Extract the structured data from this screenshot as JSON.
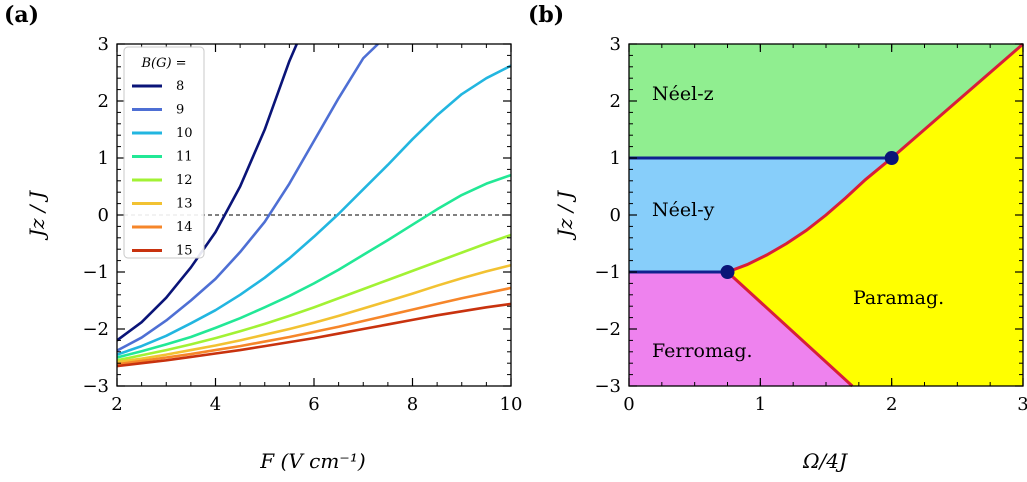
{
  "panels": {
    "a_label": "(a)",
    "b_label": "(b)"
  },
  "chart_data": [
    {
      "type": "line",
      "xlabel": "F  (V cm⁻¹)",
      "ylabel": "Jz / J",
      "xlim": [
        2,
        10
      ],
      "ylim": [
        -3,
        3
      ],
      "xticks": [
        "2",
        "4",
        "6",
        "8",
        "10"
      ],
      "yticks": [
        "−3",
        "−2",
        "−1",
        "0",
        "1",
        "2",
        "3"
      ],
      "legend_title": "B(G) =",
      "legend_position": "top-left",
      "reference_line": {
        "y": 0,
        "style": "dashed"
      },
      "series": [
        {
          "name": "8",
          "color": "#0a1478",
          "x": [
            2,
            2.5,
            3,
            3.5,
            4,
            4.5,
            5,
            5.5,
            5.65
          ],
          "y": [
            -2.2,
            -1.88,
            -1.45,
            -0.92,
            -0.3,
            0.5,
            1.5,
            2.7,
            3.0
          ]
        },
        {
          "name": "9",
          "color": "#4e6fd4",
          "x": [
            2,
            2.5,
            3,
            3.5,
            4,
            4.5,
            5,
            5.5,
            6,
            6.5,
            7,
            7.3
          ],
          "y": [
            -2.38,
            -2.15,
            -1.85,
            -1.5,
            -1.12,
            -0.65,
            -0.12,
            0.55,
            1.3,
            2.05,
            2.75,
            3.0
          ]
        },
        {
          "name": "10",
          "color": "#22b6e0",
          "x": [
            2,
            2.5,
            3,
            3.5,
            4,
            4.5,
            5,
            5.5,
            6,
            6.5,
            7,
            7.5,
            8,
            8.5,
            9,
            9.5,
            10
          ],
          "y": [
            -2.45,
            -2.3,
            -2.12,
            -1.9,
            -1.67,
            -1.4,
            -1.1,
            -0.76,
            -0.38,
            0.02,
            0.45,
            0.88,
            1.33,
            1.75,
            2.12,
            2.4,
            2.62
          ]
        },
        {
          "name": "11",
          "color": "#22e896",
          "x": [
            2,
            2.5,
            3,
            3.5,
            4,
            4.5,
            5,
            5.5,
            6,
            6.5,
            7,
            7.5,
            8,
            8.5,
            9,
            9.5,
            10
          ],
          "y": [
            -2.5,
            -2.39,
            -2.27,
            -2.14,
            -1.98,
            -1.81,
            -1.62,
            -1.42,
            -1.2,
            -0.96,
            -0.7,
            -0.44,
            -0.17,
            0.1,
            0.35,
            0.55,
            0.7
          ]
        },
        {
          "name": "12",
          "color": "#a2f234",
          "x": [
            2,
            2.5,
            3,
            3.5,
            4,
            4.5,
            5,
            5.5,
            6,
            6.5,
            7,
            7.5,
            8,
            8.5,
            9,
            9.5,
            10
          ],
          "y": [
            -2.55,
            -2.46,
            -2.37,
            -2.27,
            -2.16,
            -2.04,
            -1.91,
            -1.77,
            -1.62,
            -1.46,
            -1.3,
            -1.14,
            -0.98,
            -0.82,
            -0.66,
            -0.5,
            -0.35
          ]
        },
        {
          "name": "13",
          "color": "#f2c232",
          "x": [
            2,
            2.5,
            3,
            3.5,
            4,
            4.5,
            5,
            5.5,
            6,
            6.5,
            7,
            7.5,
            8,
            8.5,
            9,
            9.5,
            10
          ],
          "y": [
            -2.58,
            -2.52,
            -2.45,
            -2.37,
            -2.29,
            -2.2,
            -2.1,
            -2.0,
            -1.89,
            -1.77,
            -1.64,
            -1.51,
            -1.38,
            -1.24,
            -1.11,
            -0.99,
            -0.88
          ]
        },
        {
          "name": "14",
          "color": "#f6862a",
          "x": [
            2,
            2.5,
            3,
            3.5,
            4,
            4.5,
            5,
            5.5,
            6,
            6.5,
            7,
            7.5,
            8,
            8.5,
            9,
            9.5,
            10
          ],
          "y": [
            -2.62,
            -2.56,
            -2.5,
            -2.44,
            -2.37,
            -2.3,
            -2.22,
            -2.14,
            -2.05,
            -1.96,
            -1.86,
            -1.76,
            -1.66,
            -1.56,
            -1.46,
            -1.37,
            -1.28
          ]
        },
        {
          "name": "15",
          "color": "#c8320e",
          "x": [
            2,
            2.5,
            3,
            3.5,
            4,
            4.5,
            5,
            5.5,
            6,
            6.5,
            7,
            7.5,
            8,
            8.5,
            9,
            9.5,
            10
          ],
          "y": [
            -2.65,
            -2.6,
            -2.55,
            -2.49,
            -2.43,
            -2.37,
            -2.3,
            -2.23,
            -2.16,
            -2.08,
            -2.0,
            -1.92,
            -1.84,
            -1.76,
            -1.69,
            -1.62,
            -1.56
          ]
        }
      ]
    },
    {
      "type": "area",
      "xlabel": "Ω/4J",
      "ylabel": "Jz / J",
      "xlim": [
        0,
        3
      ],
      "ylim": [
        -3,
        3
      ],
      "xticks": [
        "0",
        "1",
        "2",
        "3"
      ],
      "yticks": [
        "−3",
        "−2",
        "−1",
        "0",
        "1",
        "2",
        "3"
      ],
      "regions": [
        {
          "label": "Néel-z",
          "color": "#90ee90"
        },
        {
          "label": "Néel-y",
          "color": "#87cefa"
        },
        {
          "label": "Ferromag.",
          "color": "#ee82ee"
        },
        {
          "label": "Paramag.",
          "color": "#ffff00"
        }
      ],
      "boundaries": [
        {
          "name": "neel-z/neel-y",
          "color": "#10218f",
          "x": [
            0,
            2
          ],
          "y": [
            1,
            1
          ]
        },
        {
          "name": "neel-y/ferromag",
          "color": "#10218f",
          "x": [
            0,
            0.75
          ],
          "y": [
            -1,
            -1
          ]
        },
        {
          "name": "neel-y/paramag",
          "color": "#d81e3a",
          "x": [
            0.75,
            0.9,
            1.05,
            1.2,
            1.35,
            1.5,
            1.65,
            1.8,
            2.0
          ],
          "y": [
            -1,
            -0.87,
            -0.7,
            -0.5,
            -0.27,
            0.0,
            0.3,
            0.62,
            1.0
          ]
        },
        {
          "name": "neel-z/paramag",
          "color": "#d81e3a",
          "x": [
            2,
            3
          ],
          "y": [
            1,
            3
          ]
        },
        {
          "name": "ferromag/paramag",
          "color": "#d81e3a",
          "x": [
            0.75,
            1.7
          ],
          "y": [
            -1,
            -3
          ]
        }
      ],
      "points": [
        {
          "x": 0.75,
          "y": -1
        },
        {
          "x": 2,
          "y": 1
        }
      ]
    }
  ]
}
